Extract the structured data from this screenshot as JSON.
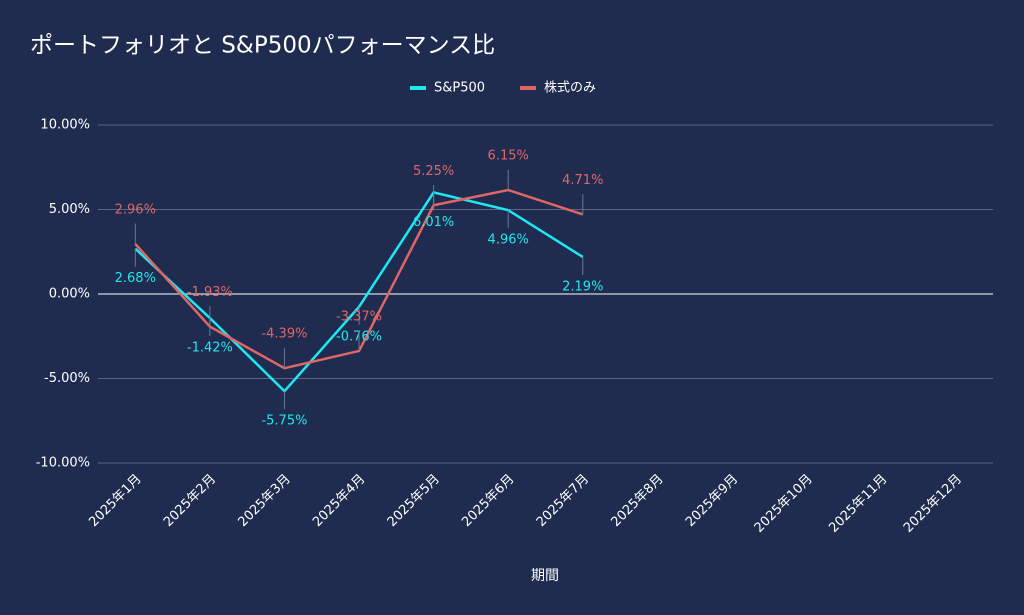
{
  "chart_data": {
    "type": "line",
    "title": "ポートフォリオと S&P500パフォーマンス比",
    "x_label": "期間",
    "categories": [
      "2025年1月",
      "2025年2月",
      "2025年3月",
      "2025年4月",
      "2025年5月",
      "2025年6月",
      "2025年7月",
      "2025年8月",
      "2025年9月",
      "2025年10月",
      "2025年11月",
      "2025年12月"
    ],
    "series": [
      {
        "name": "S&P500",
        "color": "#1ee8ef",
        "values": [
          2.68,
          -1.42,
          -5.75,
          -0.76,
          6.01,
          4.96,
          2.19,
          null,
          null,
          null,
          null,
          null
        ],
        "value_labels": [
          "2.68%",
          "-1.42%",
          "-5.75%",
          "-0.76%",
          "6.01%",
          "4.96%",
          "2.19%",
          null,
          null,
          null,
          null,
          null
        ]
      },
      {
        "name": "株式のみ",
        "color": "#e06666",
        "values": [
          2.96,
          -1.93,
          -4.39,
          -3.37,
          5.25,
          6.15,
          4.71,
          null,
          null,
          null,
          null,
          null
        ],
        "value_labels": [
          "2.96%",
          "-1.93%",
          "-4.39%",
          "-3.37%",
          "5.25%",
          "6.15%",
          "4.71%",
          null,
          null,
          null,
          null,
          null
        ]
      }
    ],
    "ylim": [
      -10,
      10
    ],
    "yticks": [
      {
        "value": -10,
        "label": "-10.00%"
      },
      {
        "value": -5,
        "label": "-5.00%"
      },
      {
        "value": 0,
        "label": "0.00%"
      },
      {
        "value": 5,
        "label": "5.00%"
      },
      {
        "value": 10,
        "label": "10.00%"
      }
    ],
    "grid": true,
    "legend": "top"
  }
}
